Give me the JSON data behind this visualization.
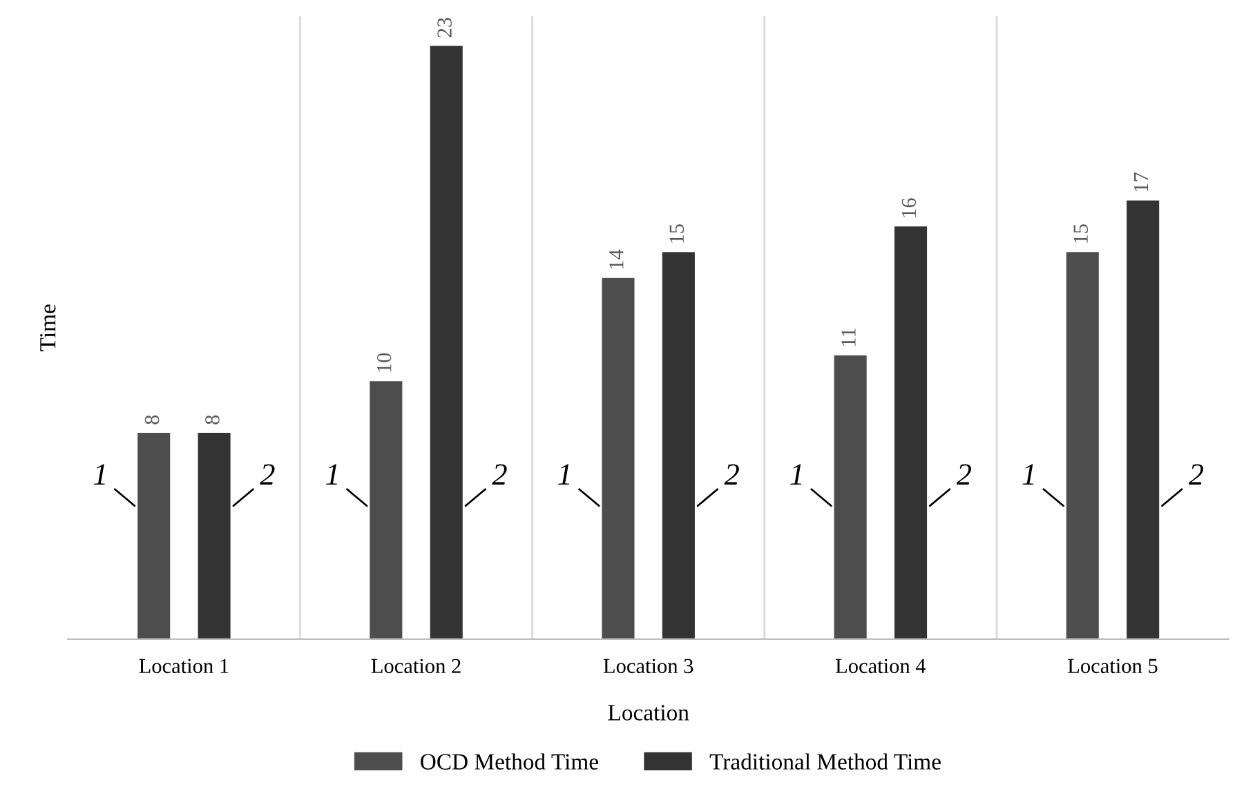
{
  "chart_data": {
    "type": "bar",
    "xlabel": "Location",
    "ylabel": "Time",
    "categories": [
      "Location 1",
      "Location 2",
      "Location 3",
      "Location 4",
      "Location 5"
    ],
    "series": [
      {
        "name": "OCD Method Time",
        "color": "#4d4d4d",
        "values": [
          8,
          10,
          14,
          11,
          15
        ]
      },
      {
        "name": "Traditional Method Time",
        "color": "#333333",
        "values": [
          8,
          23,
          15,
          16,
          17
        ]
      }
    ],
    "annotations": [
      "1",
      "2",
      "1",
      "2",
      "1",
      "2",
      "1",
      "2",
      "1",
      "2"
    ],
    "data_labels": true,
    "grid": "x",
    "legend": "bottom"
  }
}
